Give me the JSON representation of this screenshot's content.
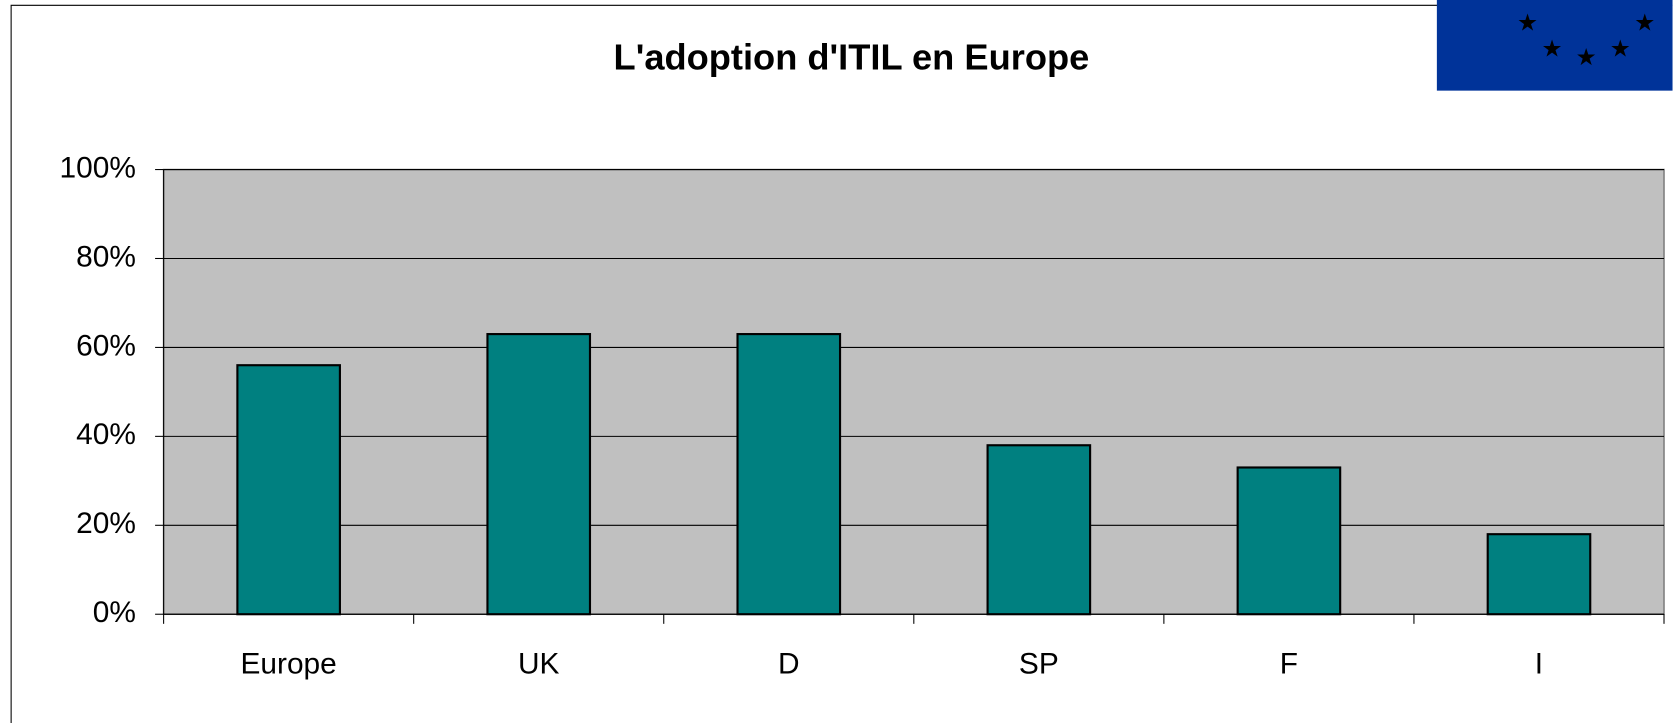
{
  "chart_data": {
    "type": "bar",
    "title": "L'adoption d'ITIL en Europe",
    "categories": [
      "Europe",
      "UK",
      "D",
      "SP",
      "F",
      "I"
    ],
    "values": [
      56,
      63,
      63,
      38,
      33,
      18
    ],
    "color": "#008080",
    "ylim": [
      0,
      100
    ],
    "yticks": [
      {
        "value": 0,
        "label": "0%"
      },
      {
        "value": 20,
        "label": "20%"
      },
      {
        "value": 40,
        "label": "40%"
      },
      {
        "value": 60,
        "label": "60%"
      },
      {
        "value": 80,
        "label": "80%"
      },
      {
        "value": 100,
        "label": "100%"
      }
    ],
    "grid": true
  }
}
